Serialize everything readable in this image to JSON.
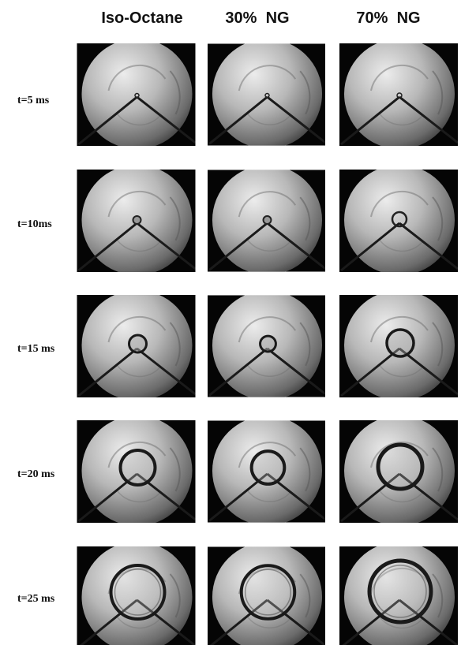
{
  "header": {
    "columns": [
      "Iso-Octane",
      "30%  NG",
      "70%  NG"
    ]
  },
  "rows": [
    "t=5 ms",
    "t=10ms",
    "t=15 ms",
    "t=20 ms",
    "t=25 ms"
  ]
}
